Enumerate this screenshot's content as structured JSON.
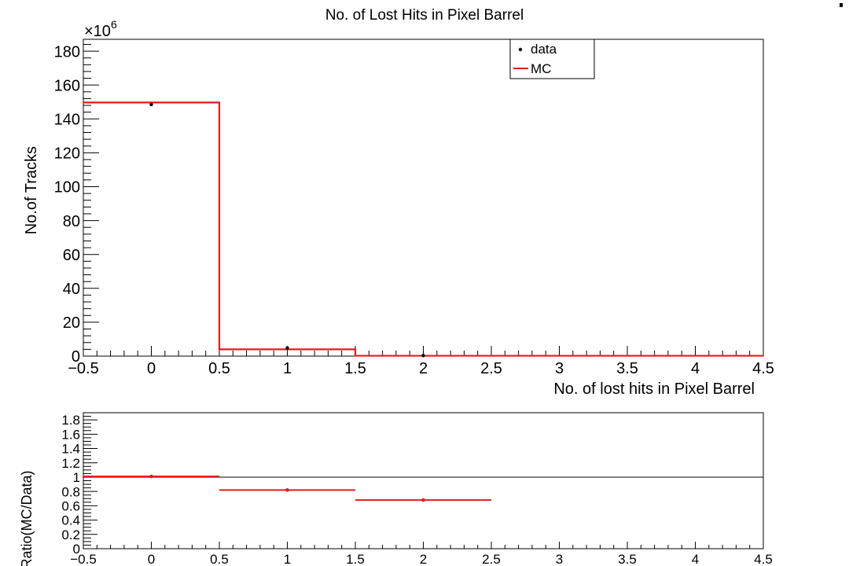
{
  "chart_data": [
    {
      "type": "histogram",
      "title": "No. of Lost Hits in Pixel Barrel",
      "xlabel": "No. of lost hits in Pixel Barrel",
      "ylabel": "No.of Tracks",
      "y_multiplier": "×10",
      "y_multiplier_exp": "6",
      "xlim": [
        -0.5,
        4.5
      ],
      "ylim": [
        0,
        187
      ],
      "x_ticks": [
        "−0.5",
        "0",
        "0.5",
        "1",
        "1.5",
        "2",
        "2.5",
        "3",
        "3.5",
        "4",
        "4.5"
      ],
      "y_ticks": [
        "0",
        "20",
        "40",
        "60",
        "80",
        "100",
        "120",
        "140",
        "160",
        "180"
      ],
      "legend": {
        "position": "top-right",
        "entries": [
          "data",
          "MC"
        ]
      },
      "series": [
        {
          "name": "data",
          "style": "markers",
          "color": "#000000",
          "x": [
            0,
            1,
            2
          ],
          "values": [
            148.5,
            4.8,
            0.3
          ]
        },
        {
          "name": "MC",
          "style": "step",
          "color": "#e8191c",
          "bin_edges": [
            -0.5,
            0.5,
            1.5,
            4.5
          ],
          "values": [
            149.7,
            4.0,
            0.2
          ]
        }
      ]
    },
    {
      "type": "scatter",
      "ylabel": "Ratio(MC/Data)",
      "xlim": [
        -0.5,
        4.5
      ],
      "ylim": [
        0,
        1.9
      ],
      "x_ticks": [
        "−0.5",
        "0",
        "0.5",
        "1",
        "1.5",
        "2",
        "2.5",
        "3",
        "3.5",
        "4",
        "4.5"
      ],
      "y_ticks": [
        "0",
        "0.2",
        "0.4",
        "0.6",
        "0.8",
        "1",
        "1.2",
        "1.4",
        "1.6",
        "1.8"
      ],
      "reference_line": 1,
      "series": [
        {
          "name": "",
          "color": "#e8191c",
          "x": [
            0,
            1,
            2
          ],
          "x_halfwidth": 0.5,
          "values": [
            1.01,
            0.82,
            0.68
          ]
        }
      ]
    }
  ]
}
